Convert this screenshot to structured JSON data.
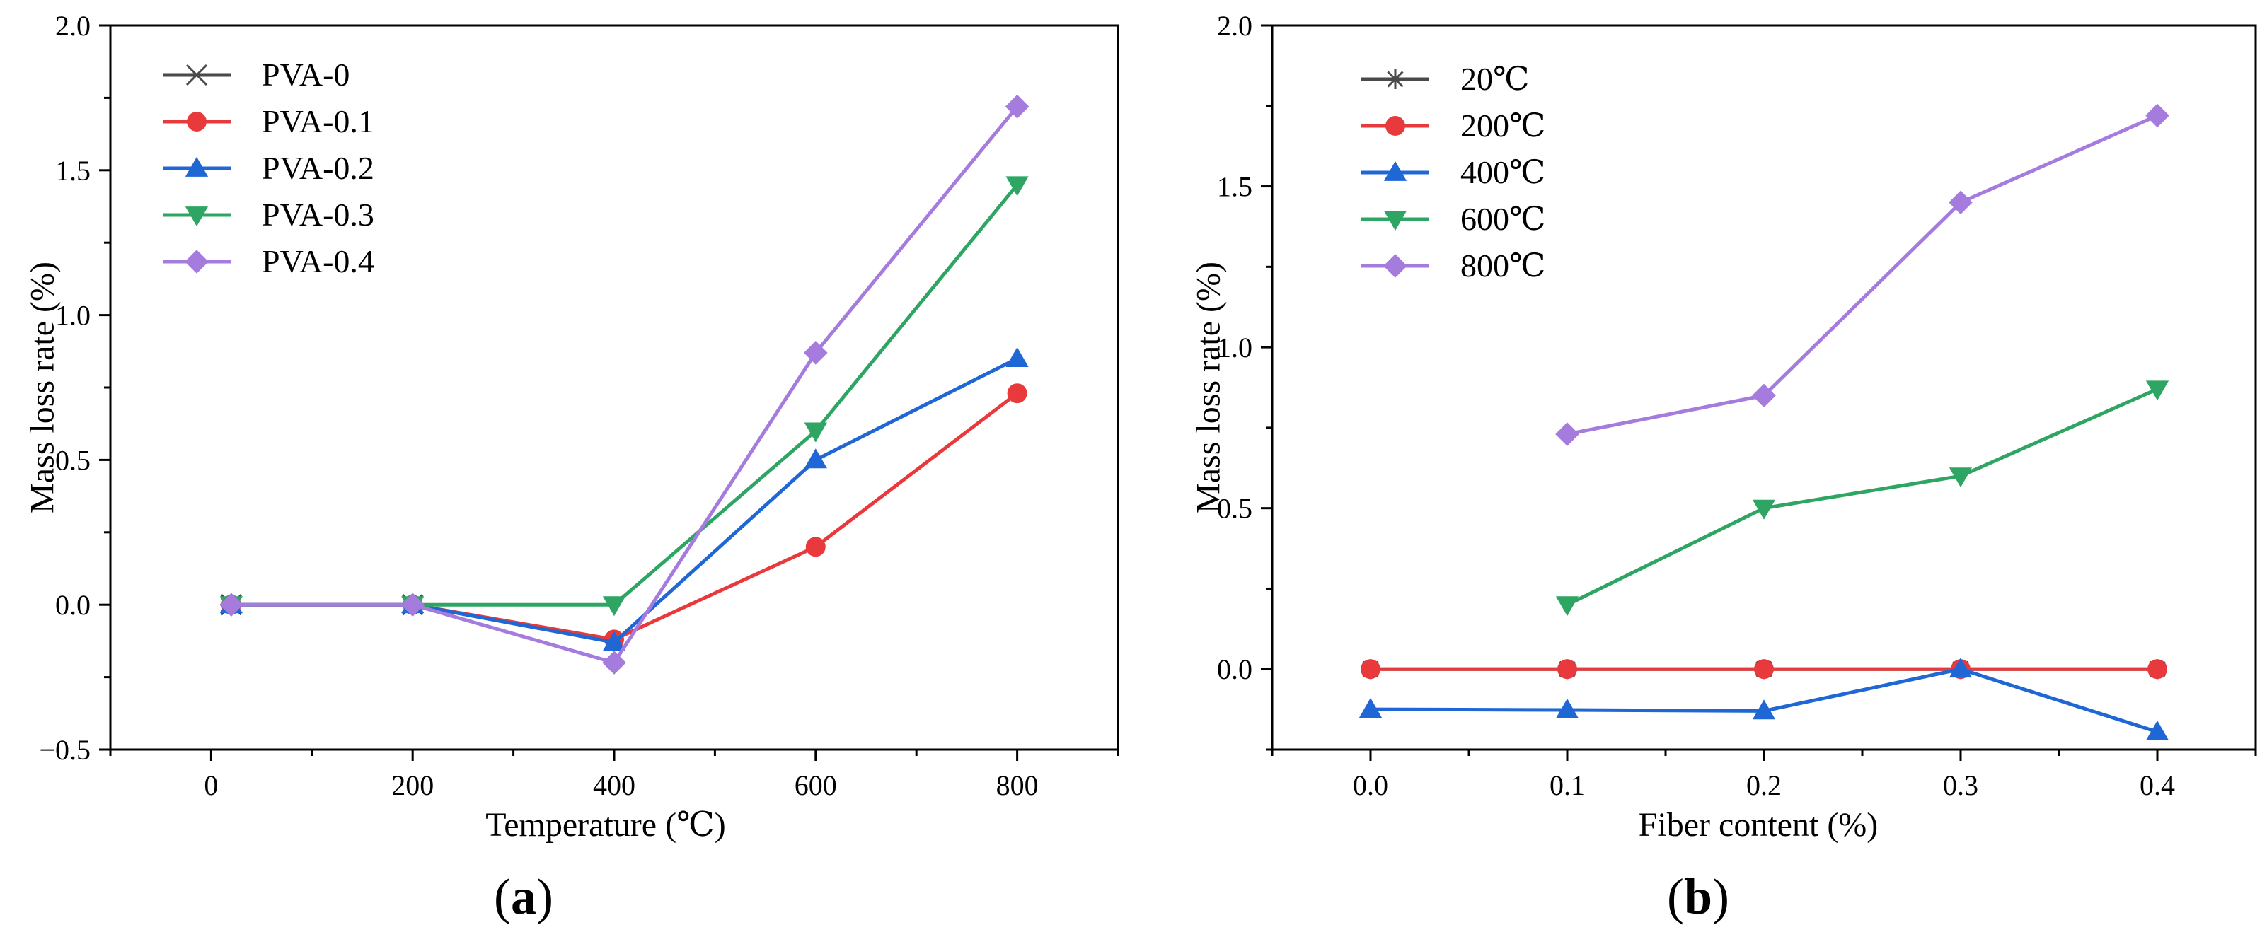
{
  "colors": {
    "s0": "#4a4a4a",
    "s1": "#e8393c",
    "s2": "#1f67d4",
    "s3": "#2fa563",
    "s4": "#a57bde"
  },
  "chart_data": [
    {
      "type": "line",
      "panel": "a",
      "panel_label": {
        "open": "(",
        "letter": "a",
        "close": ")"
      },
      "title": "",
      "xlabel": "Temperature (℃)",
      "ylabel": "Mass loss rate (%)",
      "xlim": [
        -100,
        900
      ],
      "ylim": [
        -0.5,
        2.0
      ],
      "xticks": [
        0,
        200,
        400,
        600,
        800
      ],
      "xtick_labels": [
        "0",
        "200",
        "400",
        "600",
        "800"
      ],
      "yticks": [
        -0.5,
        0.0,
        0.5,
        1.0,
        1.5,
        2.0
      ],
      "ytick_labels": [
        "−0.5",
        "0.0",
        "0.5",
        "1.0",
        "1.5",
        "2.0"
      ],
      "legend_position": "top-left",
      "series": [
        {
          "name": "PVA-0",
          "color_key": "s0",
          "marker": "x",
          "x": [
            20,
            200
          ],
          "y": [
            0.0,
            0.0
          ]
        },
        {
          "name": "PVA-0.1",
          "color_key": "s1",
          "marker": "circle",
          "x": [
            20,
            200,
            400,
            600,
            800
          ],
          "y": [
            0.0,
            0.0,
            -0.12,
            0.2,
            0.73
          ]
        },
        {
          "name": "PVA-0.2",
          "color_key": "s2",
          "marker": "triangle-up",
          "x": [
            20,
            200,
            400,
            600,
            800
          ],
          "y": [
            0.0,
            0.0,
            -0.13,
            0.5,
            0.85
          ]
        },
        {
          "name": "PVA-0.3",
          "color_key": "s3",
          "marker": "triangle-down",
          "x": [
            20,
            200,
            400,
            600,
            800
          ],
          "y": [
            0.0,
            0.0,
            0.0,
            0.6,
            1.45
          ]
        },
        {
          "name": "PVA-0.4",
          "color_key": "s4",
          "marker": "diamond",
          "x": [
            20,
            200,
            400,
            600,
            800
          ],
          "y": [
            0.0,
            0.0,
            -0.2,
            0.87,
            1.72
          ]
        }
      ]
    },
    {
      "type": "line",
      "panel": "b",
      "panel_label": {
        "open": "(",
        "letter": "b",
        "close": ")"
      },
      "title": "",
      "xlabel": "Fiber content (%)",
      "ylabel": "Mass loss rate (%)",
      "xlim": [
        -0.05,
        0.45
      ],
      "ylim": [
        -0.25,
        2.0
      ],
      "xticks": [
        0.0,
        0.1,
        0.2,
        0.3,
        0.4
      ],
      "xtick_labels": [
        "0.0",
        "0.1",
        "0.2",
        "0.3",
        "0.4"
      ],
      "yticks": [
        0.0,
        0.5,
        1.0,
        1.5,
        2.0
      ],
      "ytick_labels": [
        "0.0",
        "0.5",
        "1.0",
        "1.5",
        "2.0"
      ],
      "legend_position": "top-left",
      "series": [
        {
          "name": "20℃",
          "color_key": "s0",
          "marker": "asterisk",
          "x": [
            0.0,
            0.1,
            0.2,
            0.3,
            0.4
          ],
          "y": [
            0.0,
            0.0,
            0.0,
            0.0,
            0.0
          ]
        },
        {
          "name": "200℃",
          "color_key": "s1",
          "marker": "circle",
          "x": [
            0.0,
            0.1,
            0.2,
            0.3,
            0.4
          ],
          "y": [
            0.0,
            0.0,
            0.0,
            0.0,
            0.0
          ]
        },
        {
          "name": "400℃",
          "color_key": "s2",
          "marker": "triangle-up",
          "x": [
            0.0,
            0.1,
            0.2,
            0.3,
            0.4
          ],
          "y": [
            -0.125,
            -0.127,
            -0.13,
            0.0,
            -0.195
          ]
        },
        {
          "name": "600℃",
          "color_key": "s3",
          "marker": "triangle-down",
          "x": [
            0.1,
            0.2,
            0.3,
            0.4
          ],
          "y": [
            0.2,
            0.5,
            0.6,
            0.87
          ]
        },
        {
          "name": "800℃",
          "color_key": "s4",
          "marker": "diamond",
          "x": [
            0.1,
            0.2,
            0.3,
            0.4
          ],
          "y": [
            0.73,
            0.85,
            1.45,
            1.72
          ]
        }
      ]
    }
  ]
}
